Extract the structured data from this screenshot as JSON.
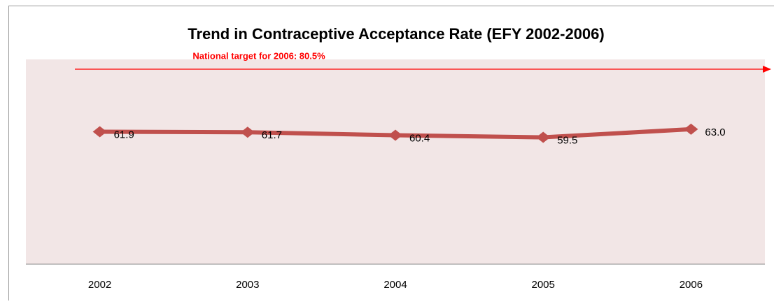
{
  "chart_data": {
    "type": "line",
    "title": "Trend in Contraceptive Acceptance Rate (EFY 2002-2006)",
    "annotation": "National target for 2006: 80.5%",
    "categories": [
      "2002",
      "2003",
      "2004",
      "2005",
      "2006"
    ],
    "series": [
      {
        "name": "Contraceptive Acceptance Rate",
        "color": "#c0504d",
        "values": [
          61.9,
          61.7,
          60.4,
          59.5,
          63.0
        ],
        "value_labels": [
          "61.9",
          "61.7",
          "60.4",
          "59.5",
          "63.0"
        ]
      }
    ],
    "ylim": [
      5,
      93
    ],
    "grid": false,
    "legend": false
  }
}
